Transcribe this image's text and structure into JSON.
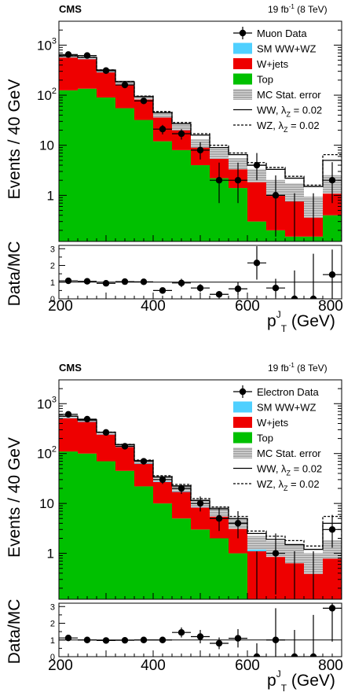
{
  "chart_data": [
    {
      "type": "bar",
      "experiment": "CMS",
      "lumi": "19 fb",
      "lumi_sup": "-1",
      "energy": "(8 TeV)",
      "ylabel": "Events / 40 GeV",
      "ratio_ylabel": "Data/MC",
      "xlabel": "p",
      "xlabel_sup": "J",
      "xlabel_sub": "T",
      "xlabel_unit": "(GeV)",
      "xlim": [
        200,
        800
      ],
      "ylim": [
        0.12,
        3000
      ],
      "yscale": "log",
      "ratio_ylim": [
        0,
        3.2
      ],
      "x_ticks": [
        "200",
        "400",
        "600",
        "800"
      ],
      "y_ticks": [
        {
          "value": 1,
          "label": "1",
          "sup": ""
        },
        {
          "value": 10,
          "label": "10",
          "sup": ""
        },
        {
          "value": 100,
          "label": "10",
          "sup": "2"
        },
        {
          "value": 1000,
          "label": "10",
          "sup": "3"
        }
      ],
      "ratio_ticks": [
        "0",
        "1",
        "2",
        "3"
      ],
      "bin_edges": [
        200,
        240,
        280,
        320,
        360,
        400,
        440,
        480,
        520,
        560,
        600,
        640,
        680,
        720,
        760,
        800
      ],
      "series": [
        {
          "name": "Top",
          "color": "#00c000",
          "values": [
            125,
            135,
            90,
            55,
            32,
            12,
            8,
            4,
            2.2,
            1.4,
            0.3,
            0.2,
            0.15,
            0.15,
            0.4
          ]
        },
        {
          "name": "W+jets",
          "color": "#ee0000",
          "values": [
            440,
            390,
            195,
            110,
            50,
            24,
            12,
            5,
            3.2,
            2,
            1.6,
            0.8,
            0.7,
            0.3,
            0.9
          ]
        },
        {
          "name": "SM WW+WZ",
          "color": "#4fd0ff",
          "values": [
            40,
            40,
            25,
            15,
            8,
            5,
            3.5,
            2,
            1.5,
            1,
            0.7,
            0.5,
            0.4,
            0.2,
            0.5
          ]
        }
      ],
      "mc_stat_label": "MC Stat. error",
      "mc_stat_relerr": [
        0.06,
        0.06,
        0.07,
        0.08,
        0.09,
        0.12,
        0.14,
        0.18,
        0.22,
        0.25,
        0.3,
        0.35,
        0.4,
        0.45,
        0.4
      ],
      "aTGC": [
        {
          "name": "WW, λ_Z = 0.02",
          "label": "WW, ",
          "lambda_sub": "Z",
          "lambda_val": " = 0.02",
          "style": "solid",
          "values": [
            610,
            570,
            315,
            185,
            94,
            45,
            27,
            16,
            9,
            6.5,
            4,
            3.3,
            2.2,
            1.5,
            5
          ]
        },
        {
          "name": "WZ, λ_Z = 0.02",
          "label": "WZ, ",
          "lambda_sub": "Z",
          "lambda_val": " = 0.02",
          "style": "dashed",
          "values": [
            612,
            572,
            318,
            188,
            96,
            47,
            28.5,
            17,
            10,
            7,
            4.5,
            3.6,
            2.4,
            1.6,
            6.5
          ]
        }
      ],
      "data_name": "Muon Data",
      "data": [
        {
          "x": 220,
          "y": 650,
          "lo": 25,
          "hi": 25,
          "ratio": 1.08,
          "rerr": 0.06
        },
        {
          "x": 260,
          "y": 620,
          "lo": 25,
          "hi": 25,
          "ratio": 1.05,
          "rerr": 0.06
        },
        {
          "x": 300,
          "y": 310,
          "lo": 18,
          "hi": 18,
          "ratio": 0.93,
          "rerr": 0.08
        },
        {
          "x": 340,
          "y": 160,
          "lo": 13,
          "hi": 13,
          "ratio": 1.03,
          "rerr": 0.1
        },
        {
          "x": 380,
          "y": 77,
          "lo": 9,
          "hi": 9,
          "ratio": 1.02,
          "rerr": 0.13
        },
        {
          "x": 420,
          "y": 21,
          "lo": 4.5,
          "hi": 4.5,
          "ratio": 0.5,
          "rerr": 0.13
        },
        {
          "x": 460,
          "y": 17,
          "lo": 4,
          "hi": 4,
          "ratio": 0.95,
          "rerr": 0.25
        },
        {
          "x": 500,
          "y": 8,
          "lo": 2.8,
          "hi": 3.5,
          "ratio": 0.65,
          "rerr": 0.23
        },
        {
          "x": 540,
          "y": 2,
          "lo": 1.3,
          "hi": 2.5,
          "ratio": 0.27,
          "rerr": 0.2
        },
        {
          "x": 580,
          "y": 2,
          "lo": 1.3,
          "hi": 2.5,
          "ratio": 0.6,
          "rerr": 0.4
        },
        {
          "x": 620,
          "y": 4,
          "lo": 2,
          "hi": 3,
          "ratio": 2.15,
          "rerr": 1.0
        },
        {
          "x": 660,
          "y": 1,
          "lo": 0.85,
          "hi": 1.5,
          "ratio": 0.65,
          "rerr": 0.55
        },
        {
          "x": 700,
          "y": 0,
          "lo": 0,
          "hi": 1.1,
          "ratio": 0,
          "rerr": 1.7
        },
        {
          "x": 740,
          "y": 0,
          "lo": 0,
          "hi": 1.1,
          "ratio": 0,
          "rerr": 2.7
        },
        {
          "x": 780,
          "y": 2,
          "lo": 1.3,
          "hi": 2.6,
          "ratio": 1.45,
          "rerr": 1.5
        }
      ]
    },
    {
      "type": "bar",
      "experiment": "CMS",
      "lumi": "19 fb",
      "lumi_sup": "-1",
      "energy": "(8 TeV)",
      "ylabel": "Events / 40 GeV",
      "ratio_ylabel": "Data/MC",
      "xlabel": "p",
      "xlabel_sup": "J",
      "xlabel_sub": "T",
      "xlabel_unit": "(GeV)",
      "xlim": [
        200,
        800
      ],
      "ylim": [
        0.12,
        3000
      ],
      "yscale": "log",
      "ratio_ylim": [
        0,
        3.2
      ],
      "x_ticks": [
        "200",
        "400",
        "600",
        "800"
      ],
      "y_ticks": [
        {
          "value": 1,
          "label": "1",
          "sup": ""
        },
        {
          "value": 10,
          "label": "10",
          "sup": ""
        },
        {
          "value": 100,
          "label": "10",
          "sup": "2"
        },
        {
          "value": 1000,
          "label": "10",
          "sup": "3"
        }
      ],
      "ratio_ticks": [
        "0",
        "1",
        "2",
        "3"
      ],
      "bin_edges": [
        200,
        240,
        280,
        320,
        360,
        400,
        440,
        480,
        520,
        560,
        600,
        640,
        680,
        720,
        760,
        800
      ],
      "series": [
        {
          "name": "Top",
          "color": "#00c000",
          "values": [
            110,
            100,
            70,
            45,
            22,
            10,
            5,
            3,
            2,
            1,
            0.1,
            0.1,
            0.1,
            0.1,
            0.1
          ]
        },
        {
          "name": "W+jets",
          "color": "#ee0000",
          "values": [
            400,
            330,
            170,
            90,
            40,
            17,
            12,
            5.3,
            3.5,
            2.1,
            1.0,
            0.8,
            0.6,
            0.4,
            0.8
          ]
        },
        {
          "name": "SM WW+WZ",
          "color": "#4fd0ff",
          "values": [
            38,
            35,
            22,
            13,
            7,
            4.5,
            3.2,
            2,
            1.5,
            1,
            0.6,
            0.4,
            0.35,
            0.2,
            0.4
          ]
        }
      ],
      "mc_stat_label": "MC Stat. error",
      "mc_stat_relerr": [
        0.06,
        0.06,
        0.07,
        0.08,
        0.09,
        0.12,
        0.14,
        0.18,
        0.22,
        0.25,
        0.3,
        0.35,
        0.4,
        0.45,
        0.4
      ],
      "aTGC": [
        {
          "name": "WW, λ_Z = 0.02",
          "label": "WW, ",
          "lambda_sub": "Z",
          "lambda_val": " = 0.02",
          "style": "solid",
          "values": [
            560,
            470,
            265,
            150,
            72,
            34,
            22.5,
            11.5,
            7.8,
            5,
            2.5,
            1.9,
            1.5,
            1.2,
            4
          ]
        },
        {
          "name": "WZ, λ_Z = 0.02",
          "label": "WZ, ",
          "lambda_sub": "Z",
          "lambda_val": " = 0.02",
          "style": "dashed",
          "values": [
            562,
            472,
            268,
            152,
            74,
            36,
            24,
            12.5,
            8.5,
            5.5,
            2.8,
            2.2,
            1.8,
            1.4,
            5.5
          ]
        }
      ],
      "data_name": "Electron Data",
      "data": [
        {
          "x": 220,
          "y": 610,
          "lo": 25,
          "hi": 25,
          "ratio": 1.12,
          "rerr": 0.06
        },
        {
          "x": 260,
          "y": 490,
          "lo": 22,
          "hi": 22,
          "ratio": 1.0,
          "rerr": 0.06
        },
        {
          "x": 300,
          "y": 265,
          "lo": 16,
          "hi": 16,
          "ratio": 0.97,
          "rerr": 0.08
        },
        {
          "x": 340,
          "y": 140,
          "lo": 12,
          "hi": 12,
          "ratio": 0.98,
          "rerr": 0.1
        },
        {
          "x": 380,
          "y": 70,
          "lo": 8.5,
          "hi": 8.5,
          "ratio": 1.0,
          "rerr": 0.13
        },
        {
          "x": 420,
          "y": 30,
          "lo": 5.5,
          "hi": 5.5,
          "ratio": 1.0,
          "rerr": 0.2
        },
        {
          "x": 460,
          "y": 20,
          "lo": 4.5,
          "hi": 4.5,
          "ratio": 1.45,
          "rerr": 0.3
        },
        {
          "x": 500,
          "y": 10,
          "lo": 3.1,
          "hi": 3.8,
          "ratio": 1.2,
          "rerr": 0.4
        },
        {
          "x": 540,
          "y": 5,
          "lo": 2.2,
          "hi": 3.2,
          "ratio": 0.8,
          "rerr": 0.35
        },
        {
          "x": 580,
          "y": 4,
          "lo": 2,
          "hi": 3,
          "ratio": 1.1,
          "rerr": 0.55
        },
        {
          "x": 620,
          "y": 0,
          "lo": 0,
          "hi": 1.1,
          "ratio": 0,
          "rerr": 0.8
        },
        {
          "x": 660,
          "y": 1,
          "lo": 0.85,
          "hi": 1.5,
          "ratio": 1.0,
          "rerr": 1.9
        },
        {
          "x": 700,
          "y": 0,
          "lo": 0,
          "hi": 1.1,
          "ratio": 0,
          "rerr": 1.6
        },
        {
          "x": 740,
          "y": 0,
          "lo": 0,
          "hi": 1.1,
          "ratio": 0,
          "rerr": 2.5
        },
        {
          "x": 780,
          "y": 3,
          "lo": 1.7,
          "hi": 2.9,
          "ratio": 2.9,
          "rerr": 2.0
        }
      ]
    }
  ]
}
